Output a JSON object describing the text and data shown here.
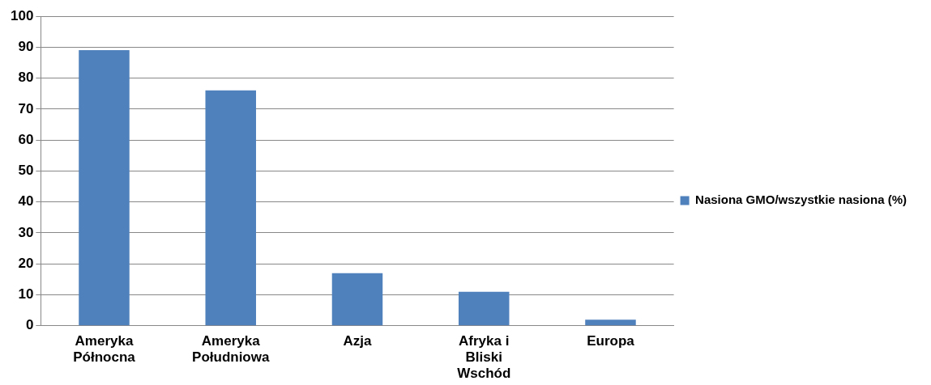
{
  "chart_data": {
    "type": "bar",
    "categories": [
      "Ameryka Północna",
      "Ameryka Południowa",
      "Azja",
      "Afryka i Bliski Wschód",
      "Europa"
    ],
    "series": [
      {
        "name": "Nasiona GMO/wszystkie nasiona (%)",
        "color": "#4f81bd",
        "values": [
          89,
          76,
          17,
          11,
          2
        ]
      }
    ],
    "ylim": [
      0,
      100
    ],
    "yticks": [
      0,
      10,
      20,
      30,
      40,
      50,
      60,
      70,
      80,
      90,
      100
    ],
    "grid": "y",
    "legend": "right"
  }
}
